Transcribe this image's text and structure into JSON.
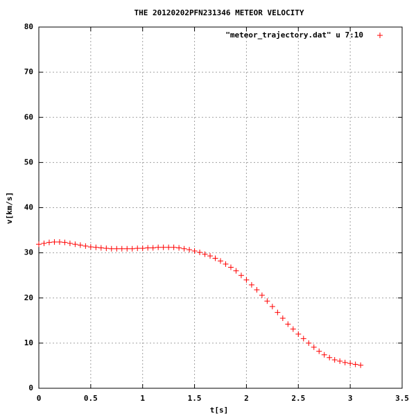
{
  "chart_data": {
    "type": "scatter",
    "title": "THE 20120202PFN231346 METEOR VELOCITY",
    "x_label": "t[s]",
    "y_label": "v[km/s]",
    "series": [
      {
        "name": "\"meteor_trajectory.dat\" u 7:10",
        "color": "#ff0000",
        "x": [
          0,
          0.05,
          0.1,
          0.15,
          0.2,
          0.25,
          0.3,
          0.35,
          0.4,
          0.45,
          0.5,
          0.55,
          0.6,
          0.65,
          0.7,
          0.75,
          0.8,
          0.85,
          0.9,
          0.95,
          1.0,
          1.05,
          1.1,
          1.15,
          1.2,
          1.25,
          1.3,
          1.35,
          1.4,
          1.45,
          1.5,
          1.55,
          1.6,
          1.65,
          1.7,
          1.75,
          1.8,
          1.85,
          1.9,
          1.95,
          2.0,
          2.05,
          2.1,
          2.15,
          2.2,
          2.25,
          2.3,
          2.35,
          2.4,
          2.45,
          2.5,
          2.55,
          2.6,
          2.65,
          2.7,
          2.75,
          2.8,
          2.85,
          2.9,
          2.95,
          3.0,
          3.05,
          3.1
        ],
        "values": [
          31.9,
          32.1,
          32.3,
          32.4,
          32.4,
          32.3,
          32.1,
          31.9,
          31.7,
          31.5,
          31.3,
          31.2,
          31.1,
          31.0,
          30.9,
          30.9,
          30.9,
          30.9,
          30.9,
          31.0,
          31.0,
          31.1,
          31.1,
          31.2,
          31.2,
          31.2,
          31.2,
          31.1,
          30.9,
          30.7,
          30.4,
          30.1,
          29.7,
          29.3,
          28.8,
          28.2,
          27.5,
          26.8,
          26.0,
          25.0,
          24.0,
          22.9,
          21.8,
          20.6,
          19.3,
          18.1,
          16.8,
          15.5,
          14.2,
          13.1,
          12.0,
          11.0,
          10.0,
          9.1,
          8.2,
          7.4,
          6.8,
          6.3,
          6.0,
          5.7,
          5.5,
          5.3,
          5.1
        ]
      }
    ],
    "xlim": [
      0,
      3.5
    ],
    "xticks": [
      0,
      0.5,
      1,
      1.5,
      2,
      2.5,
      3,
      3.5
    ],
    "ylim": [
      0,
      80
    ],
    "yticks": [
      0,
      10,
      20,
      30,
      40,
      50,
      60,
      70,
      80
    ],
    "grid": true,
    "legend": "top-right"
  }
}
